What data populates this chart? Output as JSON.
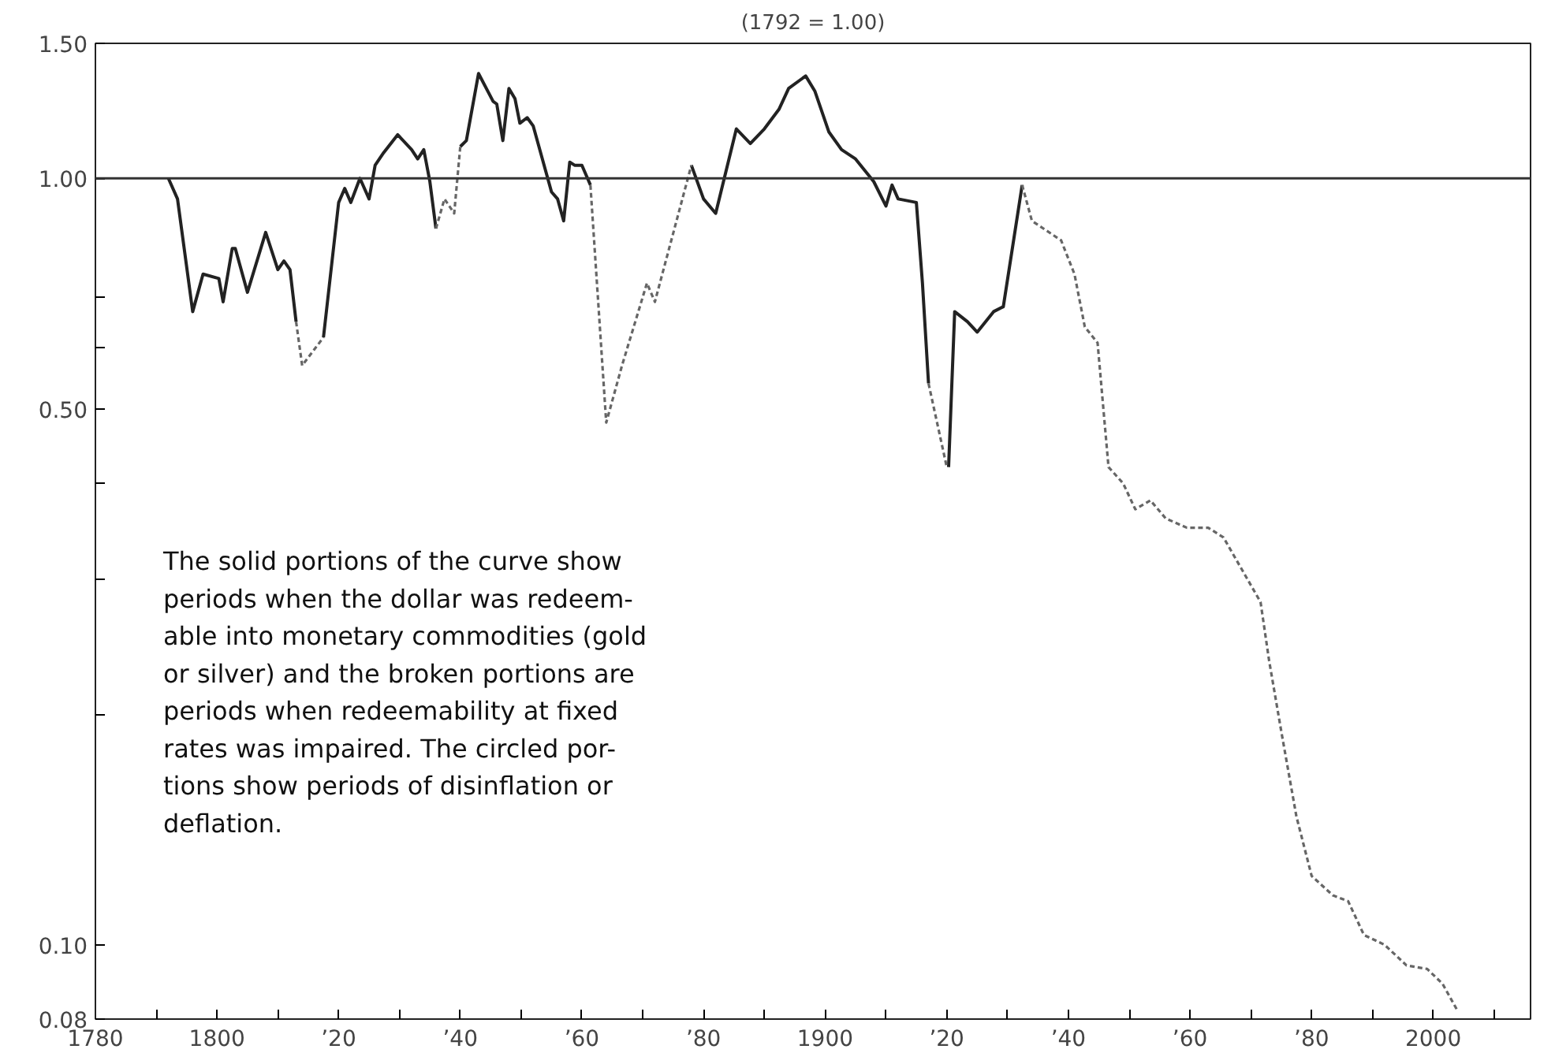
{
  "chart_data": {
    "type": "line",
    "title": "(1792 = 1.00)",
    "log": "y",
    "grid": false,
    "xlim": [
      1780,
      2016
    ],
    "ylim": [
      0.08,
      1.5
    ],
    "xticks": [
      1780,
      {
        "value": 1790,
        "label": null
      },
      1800,
      {
        "value": 1810,
        "label": null
      },
      {
        "value": 1820,
        "label": "’20"
      },
      {
        "value": 1830,
        "label": null
      },
      {
        "value": 1840,
        "label": "’40"
      },
      {
        "value": 1850,
        "label": null
      },
      {
        "value": 1860,
        "label": "’60"
      },
      {
        "value": 1870,
        "label": null
      },
      {
        "value": 1880,
        "label": "’80"
      },
      {
        "value": 1890,
        "label": null
      },
      1900,
      {
        "value": 1910,
        "label": null
      },
      {
        "value": 1920,
        "label": "’20"
      },
      {
        "value": 1930,
        "label": null
      },
      {
        "value": 1940,
        "label": "’40"
      },
      {
        "value": 1950,
        "label": null
      },
      {
        "value": 1960,
        "label": "’60"
      },
      {
        "value": 1970,
        "label": null
      },
      {
        "value": 1980,
        "label": "’80"
      },
      {
        "value": 1990,
        "label": null
      },
      2000,
      {
        "value": 2010,
        "label": null
      }
    ],
    "yticks": [
      {
        "value": 0.08,
        "label": "0.08"
      },
      {
        "value": 0.1,
        "label": "0.10"
      },
      {
        "value": 0.2,
        "label": null
      },
      {
        "value": 0.3,
        "label": null
      },
      {
        "value": 0.4,
        "label": null
      },
      {
        "value": 0.5,
        "label": "0.50"
      },
      {
        "value": 0.6,
        "label": null
      },
      {
        "value": 0.7,
        "label": null
      },
      {
        "value": 1.0,
        "label": "1.00"
      },
      {
        "value": 1.5,
        "label": "1.50"
      }
    ],
    "ref_lines": [
      {
        "axis": "y",
        "value": 1.0,
        "color": "#333333",
        "line_style": "solid"
      }
    ],
    "annotations": [
      "The solid portions of the curve show\nperiods when the dollar was redeem-\nable into monetary commodities (gold\nor silver) and the broken portions are\nperiods when redeemability at fixed\nrates was impaired. The circled por-\ntions show periods of disinflation or\ndeflation."
    ],
    "series": [
      {
        "color": "#222222",
        "line_style": "solid",
        "x": [
          1792,
          1793.5,
          1796,
          1797.7,
          1800.3,
          1801,
          1802.5,
          1803,
          1805,
          1808,
          1810,
          1811,
          1812,
          1813,
          1815,
          1817.5,
          1820,
          1821,
          1822,
          1823.5,
          1825,
          1826,
          1827.4,
          1829.7,
          1832,
          1833,
          1834,
          1835,
          1836,
          1838,
          1840,
          1841,
          1843,
          1845.4,
          1846,
          1847,
          1848,
          1849,
          1849.8,
          1851,
          1852,
          1855,
          1856,
          1857,
          1858,
          1858.8,
          1860,
          1861.4,
          1870,
          1878,
          1880,
          1882,
          1885.4,
          1887.7,
          1890,
          1892.4,
          1894,
          1896.8,
          1898.3,
          1900.6,
          1902.7,
          1905,
          1908,
          1910,
          1911,
          1912,
          1915,
          1916,
          1917,
          1919,
          1920.3,
          1921.3,
          1923.4,
          1925,
          1927.7,
          1929.3,
          1932.4
        ],
        "values": [
          1.0,
          0.94,
          0.67,
          0.75,
          0.74,
          0.69,
          0.81,
          0.81,
          0.71,
          0.85,
          0.76,
          0.78,
          0.76,
          0.65,
          null,
          0.62,
          0.93,
          0.97,
          0.93,
          1.0,
          0.94,
          1.04,
          1.08,
          1.14,
          1.09,
          1.06,
          1.09,
          0.99,
          0.86,
          null,
          1.1,
          1.12,
          1.37,
          1.26,
          1.25,
          1.12,
          1.31,
          1.27,
          1.18,
          1.2,
          1.17,
          0.96,
          0.94,
          0.88,
          1.05,
          1.04,
          1.04,
          0.98,
          null,
          1.04,
          0.94,
          0.9,
          1.16,
          1.11,
          1.16,
          1.23,
          1.31,
          1.36,
          1.3,
          1.15,
          1.09,
          1.06,
          0.99,
          0.92,
          0.98,
          0.94,
          0.93,
          0.73,
          0.54,
          null,
          0.42,
          0.67,
          0.65,
          0.63,
          0.67,
          0.68,
          0.98
        ]
      },
      {
        "color": "#666666",
        "line_style": "dashed",
        "x": [
          1813,
          1814,
          1817.5,
          1827,
          1836,
          1837.4,
          1839,
          1840,
          1850,
          1861.4,
          1864,
          1866.6,
          1870.7,
          1872,
          1878,
          1900,
          1917,
          1920,
          1926,
          1932.4,
          1934,
          1938.8,
          1941,
          1942.7,
          1944.8,
          1946.6,
          1949,
          1951,
          1953.5,
          1956,
          1959.5,
          1963,
          1965.5,
          1971.6,
          1973,
          1975,
          1977.5,
          1980,
          1983.5,
          1986,
          1988.6,
          1992,
          1995.6,
          1999,
          2001.5,
          2004
        ],
        "values": [
          0.65,
          0.57,
          0.62,
          null,
          0.86,
          0.94,
          0.9,
          1.1,
          null,
          0.98,
          0.48,
          0.57,
          0.73,
          0.69,
          1.04,
          null,
          0.54,
          0.42,
          null,
          0.98,
          0.88,
          0.83,
          0.75,
          0.64,
          0.61,
          0.42,
          0.4,
          0.37,
          0.38,
          0.36,
          0.35,
          0.35,
          0.34,
          0.28,
          0.235,
          0.19,
          0.147,
          0.123,
          0.116,
          0.114,
          0.103,
          0.1,
          0.094,
          0.093,
          0.089,
          0.082
        ]
      }
    ]
  }
}
